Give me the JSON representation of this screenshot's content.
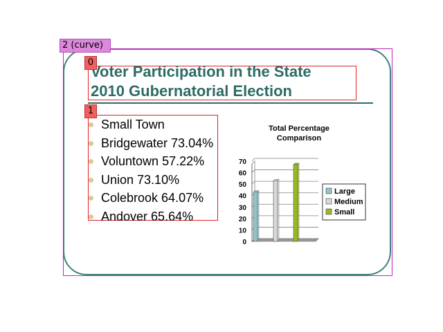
{
  "annotations": {
    "frame_tag": "2 (curve)",
    "title_tag": "0",
    "list_tag": "1"
  },
  "slide": {
    "title_lines": [
      "Voter Participation in the State",
      "2010 Gubernatorial Election"
    ],
    "list": [
      "Small Town",
      "Bridgewater 73.04%",
      "Voluntown 57.22%",
      "Union 73.10%",
      "Colebrook 64.07%",
      "Andover 65.64%"
    ]
  },
  "colors": {
    "frame": "#3e7f78",
    "title": "#2e6b66",
    "bullet": "#d8c79a"
  },
  "chart_data": {
    "type": "bar",
    "title": "Total Percentage Comparison",
    "title_lines": [
      "Total Percentage",
      "Comparison"
    ],
    "categories": [
      ""
    ],
    "series": [
      {
        "name": "Large",
        "values": [
          43
        ],
        "color": "#8fc6cc"
      },
      {
        "name": "Medium",
        "values": [
          53
        ],
        "color": "#d9d9d9"
      },
      {
        "name": "Small",
        "values": [
          67
        ],
        "color": "#99bb22"
      }
    ],
    "ylim": [
      0,
      70
    ],
    "yticks": [
      0,
      10,
      20,
      30,
      40,
      50,
      60,
      70
    ],
    "grid": true,
    "legend": "right"
  }
}
